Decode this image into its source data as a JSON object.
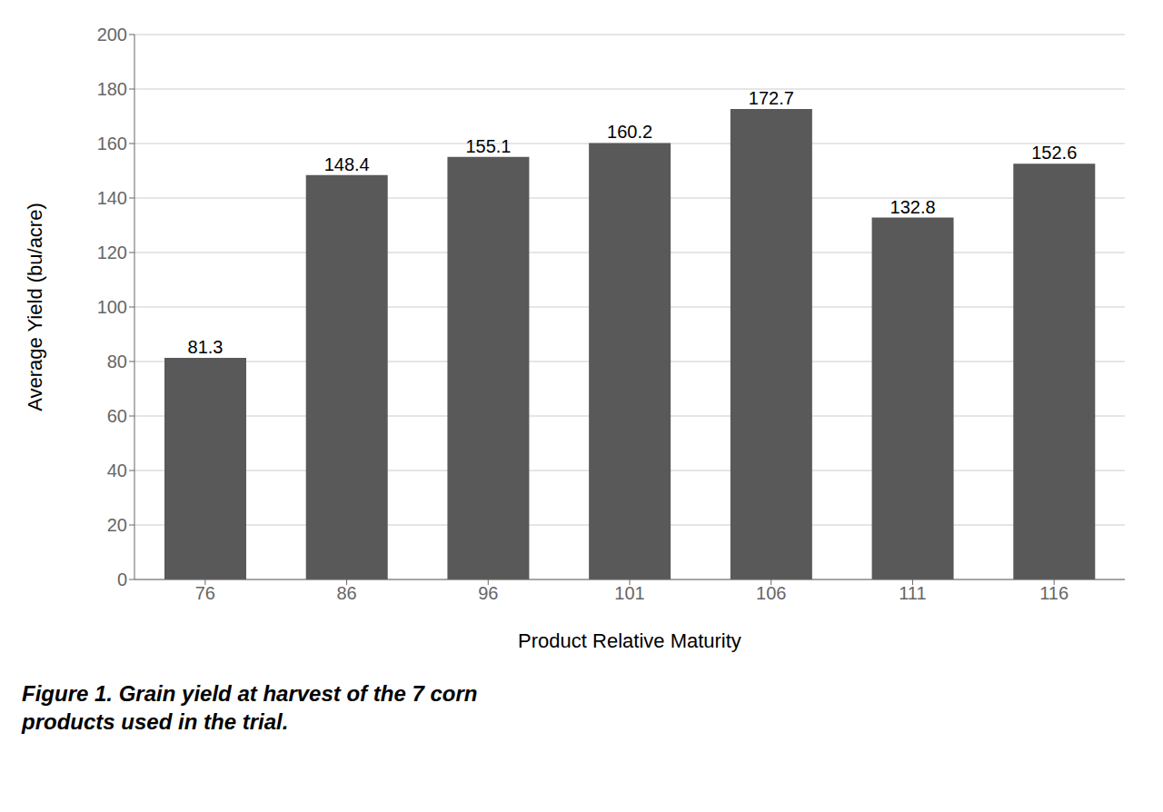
{
  "chart_data": {
    "type": "bar",
    "categories": [
      "76",
      "86",
      "96",
      "101",
      "106",
      "111",
      "116"
    ],
    "values": [
      81.3,
      148.4,
      155.1,
      160.2,
      172.7,
      132.8,
      152.6
    ],
    "color": "#595959",
    "xlabel": "Product Relative Maturity",
    "ylabel": "Average Yield (bu/acre)",
    "ylim": [
      0,
      200
    ],
    "yticks": [
      0,
      20,
      40,
      60,
      80,
      100,
      120,
      140,
      160,
      180,
      200
    ],
    "grid": true,
    "data_labels": true,
    "caption": "Figure 1. Grain yield at harvest of the 7 corn\nproducts used in the trial."
  }
}
